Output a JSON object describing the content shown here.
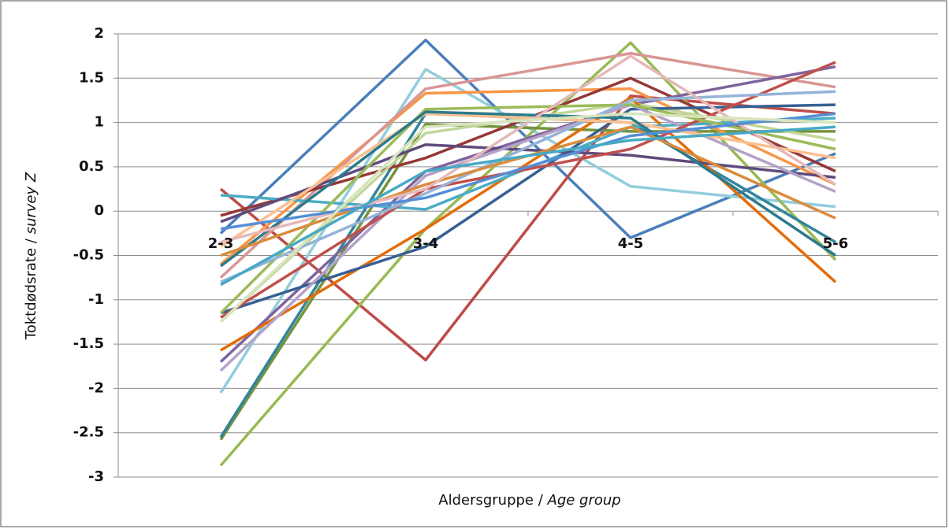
{
  "chart_data": {
    "type": "line",
    "ylabel": [
      "Toktdødsrate / ",
      "survey Z"
    ],
    "xlabel": [
      "Aldersgruppe / ",
      "Age group"
    ],
    "categories": [
      "2-3",
      "3-4",
      "4-5",
      "5-6"
    ],
    "ylim": [
      -3,
      2
    ],
    "yticks": [
      -3,
      -2.5,
      -2,
      -1.5,
      -1,
      -0.5,
      0,
      0.5,
      1,
      1.5,
      2
    ],
    "grid": true,
    "series": [
      {
        "color": "#4a7ebb",
        "values": [
          -0.25,
          1.93,
          -0.3,
          0.65
        ]
      },
      {
        "color": "#93cddd",
        "values": [
          -2.05,
          1.6,
          0.28,
          0.05
        ]
      },
      {
        "color": "#be4b48",
        "values": [
          0.25,
          -1.68,
          1.3,
          1.1
        ]
      },
      {
        "color": "#98b954",
        "values": [
          -2.87,
          -0.2,
          1.9,
          -0.55
        ]
      },
      {
        "color": "#77933c",
        "values": [
          -2.58,
          0.98,
          0.9,
          0.9
        ]
      },
      {
        "color": "#31859c",
        "values": [
          -2.55,
          1.1,
          1.0,
          -0.35
        ]
      },
      {
        "color": "#f79646",
        "values": [
          -0.6,
          1.33,
          1.38,
          0.3
        ]
      },
      {
        "color": "#d99694",
        "values": [
          -0.75,
          1.38,
          1.78,
          1.4
        ]
      },
      {
        "color": "#953735",
        "values": [
          -0.05,
          0.6,
          1.5,
          0.45
        ]
      },
      {
        "color": "#7e649e",
        "values": [
          -1.7,
          0.45,
          1.2,
          1.63
        ]
      },
      {
        "color": "#c3d69b",
        "values": [
          -1.25,
          0.88,
          1.22,
          0.8
        ]
      },
      {
        "color": "#e46c0a",
        "values": [
          -1.57,
          -0.2,
          1.28,
          -0.8
        ]
      },
      {
        "color": "#4bacc6",
        "values": [
          0.18,
          0.02,
          0.95,
          1.05
        ]
      },
      {
        "color": "#376092",
        "values": [
          -1.15,
          -0.4,
          1.15,
          1.2
        ]
      },
      {
        "color": "#604a7b",
        "values": [
          -0.12,
          0.75,
          0.63,
          0.38
        ]
      },
      {
        "color": "#b3a2c7",
        "values": [
          -1.8,
          0.4,
          1.2,
          0.22
        ]
      },
      {
        "color": "#c0504d",
        "values": [
          -1.2,
          0.25,
          0.7,
          1.68
        ]
      },
      {
        "color": "#9bbb59",
        "values": [
          -1.15,
          1.15,
          1.2,
          0.7
        ]
      },
      {
        "color": "#95b3d7",
        "values": [
          -0.8,
          0.2,
          1.25,
          1.35
        ]
      },
      {
        "color": "#fac090",
        "values": [
          -0.4,
          1.1,
          1.0,
          0.6
        ]
      },
      {
        "color": "#2c7a8c",
        "values": [
          -0.62,
          1.12,
          1.05,
          -0.5
        ]
      },
      {
        "color": "#d98c3c",
        "values": [
          -0.5,
          0.3,
          0.95,
          -0.08
        ]
      },
      {
        "color": "#e6b9b8",
        "values": [
          -0.35,
          0.25,
          1.75,
          0.3
        ]
      },
      {
        "color": "#558ed5",
        "values": [
          -0.2,
          0.15,
          0.85,
          1.1
        ]
      },
      {
        "color": "#d7e4bd",
        "values": [
          -1.25,
          0.95,
          1.1,
          1.0
        ]
      },
      {
        "color": "#46aac5",
        "values": [
          -0.83,
          0.45,
          0.8,
          0.95
        ]
      }
    ]
  }
}
